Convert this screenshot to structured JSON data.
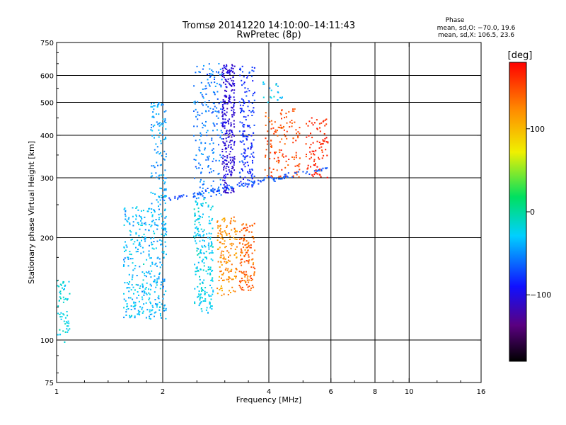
{
  "chart_data": {
    "type": "scatter",
    "title": "Tromsø 20141220 14:10:00–14:11:43",
    "subtitle": "RwPretec (8p)",
    "xlabel": "Frequency [MHz]",
    "ylabel": "Stationary phase Virtual Height [km]",
    "x_scale": "log",
    "y_scale": "log",
    "xlim": [
      1,
      16
    ],
    "ylim": [
      75,
      750
    ],
    "x_ticks": [
      1,
      2,
      4,
      6,
      8,
      10,
      16
    ],
    "x_tick_labels": [
      "1",
      "2",
      "4",
      "6",
      "8",
      "10",
      "16"
    ],
    "y_ticks": [
      75,
      100,
      200,
      300,
      400,
      500,
      600,
      750
    ],
    "y_tick_labels": [
      "75",
      "100",
      "200",
      "300",
      "400",
      "500",
      "600",
      "750"
    ],
    "grid_x": [
      2,
      4,
      6,
      8,
      10
    ],
    "grid_y": [
      100,
      200,
      300,
      400,
      500,
      600
    ],
    "grid": true,
    "stats_title": "Phase",
    "stats_o": "mean, sd,O: −70.0, 19.6",
    "stats_x": "mean, sd,X: 106.5, 23.6",
    "colorbar": {
      "label": "[deg]",
      "min": -180,
      "max": 180,
      "ticks": [
        100,
        0,
        -100
      ],
      "tick_labels": [
        "100",
        "0",
        "−100"
      ],
      "colormap": "rainbow (black-purple-blue-cyan-green-yellow-red)"
    },
    "clusters": [
      {
        "x": [
          1.0,
          1.09
        ],
        "y": [
          98,
          150
        ],
        "phase": -20,
        "spread": 14,
        "n": 60
      },
      {
        "x": [
          1.55,
          2.05
        ],
        "y": [
          115,
          250
        ],
        "phase": -35,
        "spread": 18,
        "n": 380
      },
      {
        "x": [
          1.85,
          2.05
        ],
        "y": [
          250,
          500
        ],
        "phase": -45,
        "spread": 15,
        "n": 120
      },
      {
        "x": [
          2.45,
          2.78
        ],
        "y": [
          120,
          260
        ],
        "phase": -25,
        "spread": 16,
        "n": 210
      },
      {
        "x": [
          2.45,
          2.95
        ],
        "y": [
          260,
          650
        ],
        "phase": -55,
        "spread": 16,
        "n": 200
      },
      {
        "x": [
          2.95,
          3.2
        ],
        "y": [
          270,
          650
        ],
        "phase": -105,
        "spread": 12,
        "n": 280
      },
      {
        "x": [
          3.3,
          3.65
        ],
        "y": [
          280,
          640
        ],
        "phase": -80,
        "spread": 16,
        "n": 170
      },
      {
        "x": [
          2.85,
          3.25
        ],
        "y": [
          135,
          230
        ],
        "phase": 120,
        "spread": 20,
        "n": 150
      },
      {
        "x": [
          3.3,
          3.65
        ],
        "y": [
          140,
          220
        ],
        "phase": 140,
        "spread": 18,
        "n": 130
      },
      {
        "x": [
          3.9,
          4.9
        ],
        "y": [
          300,
          480
        ],
        "phase": 150,
        "spread": 15,
        "n": 130
      },
      {
        "x": [
          5.1,
          5.9
        ],
        "y": [
          300,
          450
        ],
        "phase": 165,
        "spread": 14,
        "n": 90
      },
      {
        "x": [
          3.8,
          4.4
        ],
        "y": [
          500,
          580
        ],
        "phase": -30,
        "spread": 18,
        "n": 20
      }
    ],
    "trace": {
      "x": [
        2.0,
        5.9
      ],
      "y": [
        258,
        320
      ],
      "phase": -70,
      "spread": 10,
      "n": 120
    }
  }
}
